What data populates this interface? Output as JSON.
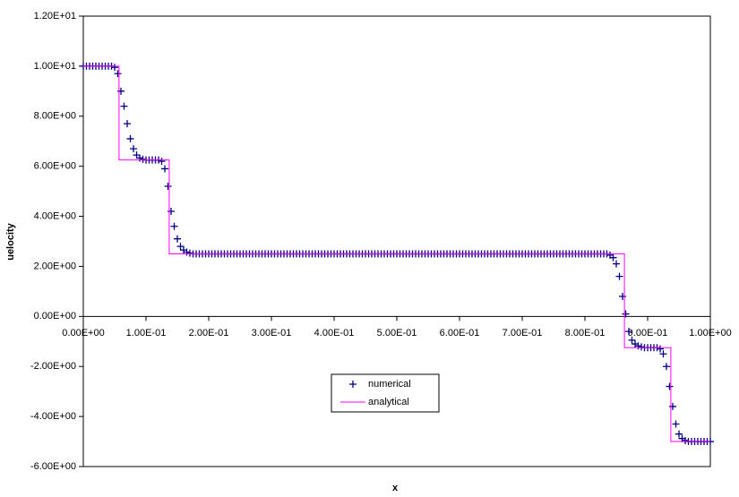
{
  "chart_data": {
    "type": "scatter",
    "x_label": "x",
    "y_label": "uelocity",
    "xlim": [
      0,
      1
    ],
    "ylim": [
      -6,
      12
    ],
    "xticks": [
      {
        "value": 0,
        "label": "0.00E+00"
      },
      {
        "value": 0.1,
        "label": "1.00E-01"
      },
      {
        "value": 0.2,
        "label": "2.00E-01"
      },
      {
        "value": 0.3,
        "label": "3.00E-01"
      },
      {
        "value": 0.4,
        "label": "4.00E-01"
      },
      {
        "value": 0.5,
        "label": "5.00E-01"
      },
      {
        "value": 0.6,
        "label": "6.00E-01"
      },
      {
        "value": 0.7,
        "label": "7.00E-01"
      },
      {
        "value": 0.8,
        "label": "8.00E-01"
      },
      {
        "value": 0.9,
        "label": "9.00E-01"
      },
      {
        "value": 1,
        "label": "1.00E+00"
      }
    ],
    "yticks": [
      {
        "value": -6,
        "label": "-6.00E+00"
      },
      {
        "value": -4,
        "label": "-4.00E+00"
      },
      {
        "value": -2,
        "label": "-2.00E+00"
      },
      {
        "value": 0,
        "label": "0.00E+00"
      },
      {
        "value": 2,
        "label": "2.00E+00"
      },
      {
        "value": 4,
        "label": "4.00E+00"
      },
      {
        "value": 6,
        "label": "6.00E+00"
      },
      {
        "value": 8,
        "label": "8.00E+00"
      },
      {
        "value": 10,
        "label": "1.00E+01"
      },
      {
        "value": 12,
        "label": "1.20E+01"
      }
    ],
    "grid": false,
    "legend": "center",
    "series": [
      {
        "name": "numerical",
        "color": "#000080",
        "marker": "plus",
        "x": [
          0,
          0.005,
          0.01,
          0.015,
          0.02,
          0.025,
          0.03,
          0.035,
          0.04,
          0.045,
          0.05,
          0.055,
          0.06,
          0.065,
          0.07,
          0.075,
          0.08,
          0.085,
          0.09,
          0.095,
          0.1,
          0.105,
          0.11,
          0.115,
          0.12,
          0.125,
          0.13,
          0.135,
          0.14,
          0.145,
          0.15,
          0.155,
          0.16,
          0.165,
          0.17,
          0.175,
          0.18,
          0.185,
          0.19,
          0.195,
          0.2,
          0.205,
          0.21,
          0.215,
          0.22,
          0.225,
          0.23,
          0.235,
          0.24,
          0.245,
          0.25,
          0.255,
          0.26,
          0.265,
          0.27,
          0.275,
          0.28,
          0.285,
          0.29,
          0.295,
          0.3,
          0.305,
          0.31,
          0.315,
          0.32,
          0.325,
          0.33,
          0.335,
          0.34,
          0.345,
          0.35,
          0.355,
          0.36,
          0.365,
          0.37,
          0.375,
          0.38,
          0.385,
          0.39,
          0.395,
          0.4,
          0.405,
          0.41,
          0.415,
          0.42,
          0.425,
          0.43,
          0.435,
          0.44,
          0.445,
          0.45,
          0.455,
          0.46,
          0.465,
          0.47,
          0.475,
          0.48,
          0.485,
          0.49,
          0.495,
          0.5,
          0.505,
          0.51,
          0.515,
          0.52,
          0.525,
          0.53,
          0.535,
          0.54,
          0.545,
          0.55,
          0.555,
          0.56,
          0.565,
          0.57,
          0.575,
          0.58,
          0.585,
          0.59,
          0.595,
          0.6,
          0.605,
          0.61,
          0.615,
          0.62,
          0.625,
          0.63,
          0.635,
          0.64,
          0.645,
          0.65,
          0.655,
          0.66,
          0.665,
          0.67,
          0.675,
          0.68,
          0.685,
          0.69,
          0.695,
          0.7,
          0.705,
          0.71,
          0.715,
          0.72,
          0.725,
          0.73,
          0.735,
          0.74,
          0.745,
          0.75,
          0.755,
          0.76,
          0.765,
          0.77,
          0.775,
          0.78,
          0.785,
          0.79,
          0.795,
          0.8,
          0.805,
          0.81,
          0.815,
          0.82,
          0.825,
          0.83,
          0.835,
          0.84,
          0.845,
          0.85,
          0.855,
          0.86,
          0.865,
          0.87,
          0.875,
          0.88,
          0.885,
          0.89,
          0.895,
          0.9,
          0.905,
          0.91,
          0.915,
          0.92,
          0.925,
          0.93,
          0.935,
          0.94,
          0.945,
          0.95,
          0.955,
          0.96,
          0.965,
          0.97,
          0.975,
          0.98,
          0.985,
          0.99,
          0.995,
          1
        ],
        "values": [
          10,
          10,
          10,
          10,
          10,
          10,
          10,
          10,
          10,
          10,
          9.95,
          9.7,
          9.0,
          8.4,
          7.7,
          7.1,
          6.7,
          6.45,
          6.33,
          6.28,
          6.25,
          6.25,
          6.25,
          6.25,
          6.25,
          6.2,
          5.9,
          5.2,
          4.2,
          3.6,
          3.1,
          2.8,
          2.65,
          2.57,
          2.53,
          2.5,
          2.5,
          2.5,
          2.5,
          2.5,
          2.5,
          2.5,
          2.5,
          2.5,
          2.5,
          2.5,
          2.5,
          2.5,
          2.5,
          2.5,
          2.5,
          2.5,
          2.5,
          2.5,
          2.5,
          2.5,
          2.5,
          2.5,
          2.5,
          2.5,
          2.5,
          2.5,
          2.5,
          2.5,
          2.5,
          2.5,
          2.5,
          2.5,
          2.5,
          2.5,
          2.5,
          2.5,
          2.5,
          2.5,
          2.5,
          2.5,
          2.5,
          2.5,
          2.5,
          2.5,
          2.5,
          2.5,
          2.5,
          2.5,
          2.5,
          2.5,
          2.5,
          2.5,
          2.5,
          2.5,
          2.5,
          2.5,
          2.5,
          2.5,
          2.5,
          2.5,
          2.5,
          2.5,
          2.5,
          2.5,
          2.5,
          2.5,
          2.5,
          2.5,
          2.5,
          2.5,
          2.5,
          2.5,
          2.5,
          2.5,
          2.5,
          2.5,
          2.5,
          2.5,
          2.5,
          2.5,
          2.5,
          2.5,
          2.5,
          2.5,
          2.5,
          2.5,
          2.5,
          2.5,
          2.5,
          2.5,
          2.5,
          2.5,
          2.5,
          2.5,
          2.5,
          2.5,
          2.5,
          2.5,
          2.5,
          2.5,
          2.5,
          2.5,
          2.5,
          2.5,
          2.5,
          2.5,
          2.5,
          2.5,
          2.5,
          2.5,
          2.5,
          2.5,
          2.5,
          2.5,
          2.5,
          2.5,
          2.5,
          2.5,
          2.5,
          2.5,
          2.5,
          2.5,
          2.5,
          2.5,
          2.5,
          2.5,
          2.5,
          2.5,
          2.5,
          2.5,
          2.5,
          2.5,
          2.45,
          2.35,
          2.1,
          1.6,
          0.8,
          0.1,
          -0.6,
          -0.95,
          -1.1,
          -1.18,
          -1.22,
          -1.25,
          -1.25,
          -1.25,
          -1.25,
          -1.25,
          -1.3,
          -1.5,
          -2.0,
          -2.8,
          -3.6,
          -4.3,
          -4.7,
          -4.88,
          -4.96,
          -5,
          -5,
          -5,
          -5,
          -5,
          -5,
          -5,
          -5
        ]
      },
      {
        "name": "analytical",
        "color": "#ff00ff",
        "x": [
          0,
          0.057,
          0.057,
          0.137,
          0.137,
          0.863,
          0.863,
          0.937,
          0.937,
          1
        ],
        "values": [
          10,
          10,
          6.25,
          6.25,
          2.5,
          2.5,
          -1.25,
          -1.25,
          -5,
          -5
        ]
      }
    ]
  }
}
